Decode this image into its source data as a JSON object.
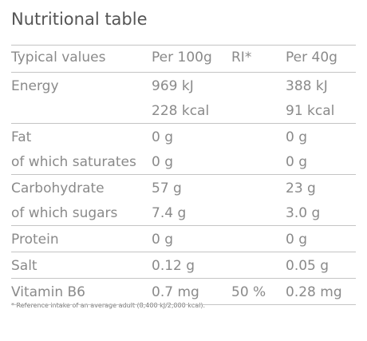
{
  "title": "Nutritional table",
  "table": {
    "header": {
      "label": "Typical values",
      "per_100g": "Per 100g",
      "ri": "RI*",
      "per_40g": "Per 40g"
    },
    "groups": [
      [
        {
          "label": "Energy",
          "per_100g": "969 kJ",
          "per_40g": "388 kJ"
        },
        {
          "per_100g": "228 kcal",
          "per_40g": "91 kcal"
        }
      ],
      [
        {
          "label": "Fat",
          "per_100g": "0 g",
          "per_40g": "0 g"
        },
        {
          "label": "of which saturates",
          "per_100g": "0 g",
          "per_40g": "0 g"
        }
      ],
      [
        {
          "label": "Carbohydrate",
          "per_100g": "57 g",
          "per_40g": "23 g"
        },
        {
          "label": "of which sugars",
          "per_100g": "7.4 g",
          "per_40g": "3.0 g"
        }
      ],
      [
        {
          "label": "Protein",
          "per_100g": "0 g",
          "per_40g": "0 g"
        }
      ],
      [
        {
          "label": "Salt",
          "per_100g": "0.12 g",
          "per_40g": "0.05 g"
        }
      ],
      [
        {
          "label": "Vitamin B6",
          "per_100g": "0.7 mg",
          "ri": "50 %",
          "per_40g": "0.28 mg"
        }
      ]
    ]
  },
  "footnote": "* Reference intake of an average adult (8,400 kJ/2,000 kcal)."
}
